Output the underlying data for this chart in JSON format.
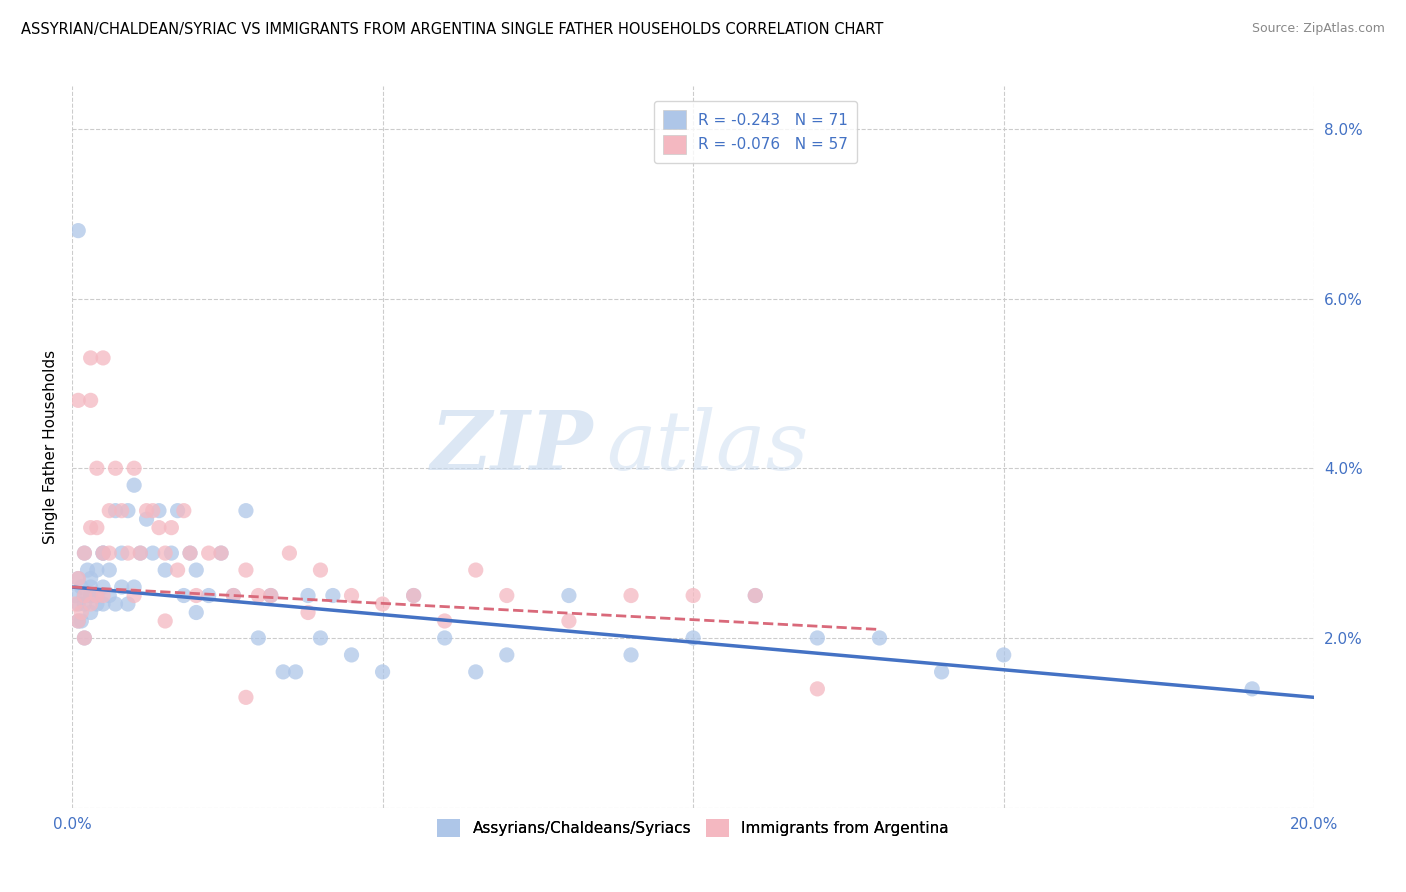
{
  "title": "ASSYRIAN/CHALDEAN/SYRIAC VS IMMIGRANTS FROM ARGENTINA SINGLE FATHER HOUSEHOLDS CORRELATION CHART",
  "source": "Source: ZipAtlas.com",
  "ylabel": "Single Father Households",
  "x_min": 0.0,
  "x_max": 0.2,
  "y_min": 0.0,
  "y_max": 0.085,
  "x_ticks": [
    0.0,
    0.05,
    0.1,
    0.15,
    0.2
  ],
  "x_tick_labels": [
    "0.0%",
    "",
    "",
    "",
    "20.0%"
  ],
  "y_ticks_right": [
    0.0,
    0.02,
    0.04,
    0.06,
    0.08
  ],
  "y_tick_labels_right": [
    "",
    "2.0%",
    "4.0%",
    "6.0%",
    "8.0%"
  ],
  "series1_label": "Assyrians/Chaldeans/Syriacs",
  "series2_label": "Immigrants from Argentina",
  "series1_color": "#aec6e8",
  "series2_color": "#f4b8c1",
  "series1_line_color": "#4472c4",
  "series2_line_color": "#d9697a",
  "watermark": "ZIPatlas",
  "series1_R": -0.243,
  "series1_N": 71,
  "series2_R": -0.076,
  "series2_N": 57,
  "series1_line_x0": 0.0,
  "series1_line_y0": 0.026,
  "series1_line_x1": 0.2,
  "series1_line_y1": 0.013,
  "series2_line_x0": 0.0,
  "series2_line_y0": 0.026,
  "series2_line_x1": 0.13,
  "series2_line_y1": 0.021,
  "series1_x": [
    0.0005,
    0.001,
    0.001,
    0.0015,
    0.0015,
    0.002,
    0.002,
    0.002,
    0.0025,
    0.003,
    0.003,
    0.003,
    0.003,
    0.004,
    0.004,
    0.004,
    0.005,
    0.005,
    0.005,
    0.006,
    0.006,
    0.007,
    0.007,
    0.008,
    0.008,
    0.009,
    0.009,
    0.01,
    0.01,
    0.011,
    0.012,
    0.013,
    0.014,
    0.015,
    0.016,
    0.017,
    0.018,
    0.019,
    0.02,
    0.022,
    0.024,
    0.026,
    0.028,
    0.03,
    0.032,
    0.034,
    0.036,
    0.038,
    0.04,
    0.042,
    0.045,
    0.05,
    0.055,
    0.06,
    0.065,
    0.07,
    0.08,
    0.09,
    0.1,
    0.11,
    0.12,
    0.13,
    0.14,
    0.15,
    0.001,
    0.002,
    0.003,
    0.005,
    0.02,
    0.19,
    0.001
  ],
  "series1_y": [
    0.025,
    0.027,
    0.024,
    0.026,
    0.022,
    0.03,
    0.025,
    0.024,
    0.028,
    0.027,
    0.025,
    0.023,
    0.026,
    0.028,
    0.025,
    0.024,
    0.03,
    0.026,
    0.024,
    0.028,
    0.025,
    0.035,
    0.024,
    0.03,
    0.026,
    0.035,
    0.024,
    0.038,
    0.026,
    0.03,
    0.034,
    0.03,
    0.035,
    0.028,
    0.03,
    0.035,
    0.025,
    0.03,
    0.028,
    0.025,
    0.03,
    0.025,
    0.035,
    0.02,
    0.025,
    0.016,
    0.016,
    0.025,
    0.02,
    0.025,
    0.018,
    0.016,
    0.025,
    0.02,
    0.016,
    0.018,
    0.025,
    0.018,
    0.02,
    0.025,
    0.02,
    0.02,
    0.016,
    0.018,
    0.022,
    0.02,
    0.025,
    0.03,
    0.023,
    0.014,
    0.068
  ],
  "series2_x": [
    0.0005,
    0.001,
    0.001,
    0.0015,
    0.002,
    0.002,
    0.002,
    0.003,
    0.003,
    0.003,
    0.004,
    0.004,
    0.004,
    0.005,
    0.005,
    0.006,
    0.006,
    0.007,
    0.008,
    0.009,
    0.01,
    0.011,
    0.012,
    0.013,
    0.014,
    0.015,
    0.016,
    0.017,
    0.018,
    0.019,
    0.02,
    0.022,
    0.024,
    0.026,
    0.028,
    0.03,
    0.032,
    0.035,
    0.038,
    0.04,
    0.045,
    0.05,
    0.055,
    0.06,
    0.065,
    0.07,
    0.08,
    0.09,
    0.1,
    0.11,
    0.12,
    0.003,
    0.005,
    0.01,
    0.015,
    0.028,
    0.001
  ],
  "series2_y": [
    0.024,
    0.027,
    0.022,
    0.023,
    0.03,
    0.025,
    0.02,
    0.033,
    0.048,
    0.024,
    0.04,
    0.033,
    0.025,
    0.03,
    0.025,
    0.035,
    0.03,
    0.04,
    0.035,
    0.03,
    0.025,
    0.03,
    0.035,
    0.035,
    0.033,
    0.03,
    0.033,
    0.028,
    0.035,
    0.03,
    0.025,
    0.03,
    0.03,
    0.025,
    0.028,
    0.025,
    0.025,
    0.03,
    0.023,
    0.028,
    0.025,
    0.024,
    0.025,
    0.022,
    0.028,
    0.025,
    0.022,
    0.025,
    0.025,
    0.025,
    0.014,
    0.053,
    0.053,
    0.04,
    0.022,
    0.013,
    0.048
  ]
}
